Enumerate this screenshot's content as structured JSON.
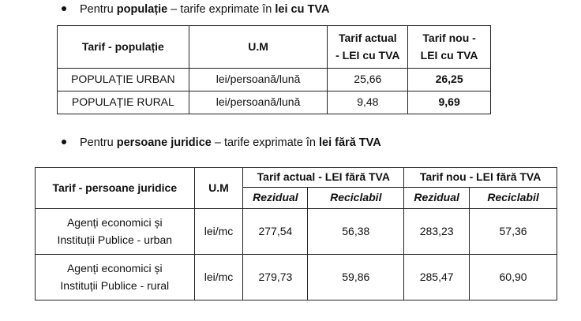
{
  "section1": {
    "prefix": "Pentru ",
    "bold1": "populație",
    "middle": " – tarife exprimate în ",
    "bold2": "lei cu TVA"
  },
  "table1": {
    "headers": [
      "Tarif - populație",
      "U.M",
      "Tarif actual - LEI cu TVA",
      "Tarif nou - LEI cu TVA"
    ],
    "header_actual_line1": "Tarif actual",
    "header_actual_line2": "- LEI cu TVA",
    "header_nou_line1": "Tarif nou -",
    "header_nou_line2": "LEI cu TVA",
    "rows": [
      [
        "POPULAȚIE URBAN",
        "lei/persoană/lună",
        "25,66",
        "26,25"
      ],
      [
        "POPULAȚIE RURAL",
        "lei/persoană/lună",
        "9,48",
        "9,69"
      ]
    ]
  },
  "section2": {
    "prefix": "Pentru ",
    "bold1": "persoane juridice",
    "middle": " – tarife exprimate în ",
    "bold2": "lei fără TVA"
  },
  "table2": {
    "header_tarif": "Tarif - persoane juridice",
    "header_um": "U.M",
    "header_actual": "Tarif actual - LEI fără TVA",
    "header_nou": "Tarif nou - LEI fără TVA",
    "sub_rezidual": "Rezidual",
    "sub_reciclabil": "Reciclabil",
    "rows": [
      {
        "line1": "Agenți economici și",
        "line2": "Instituții Publice - urban",
        "um": "lei/mc",
        "a_rez": "277,54",
        "a_rec": "56,38",
        "n_rez": "283,23",
        "n_rec": "57,36"
      },
      {
        "line1": "Agenți economici și",
        "line2": "Instituții Publice - rural",
        "um": "lei/mc",
        "a_rez": "279,73",
        "a_rec": "59,86",
        "n_rez": "285,47",
        "n_rec": "60,90"
      }
    ]
  }
}
